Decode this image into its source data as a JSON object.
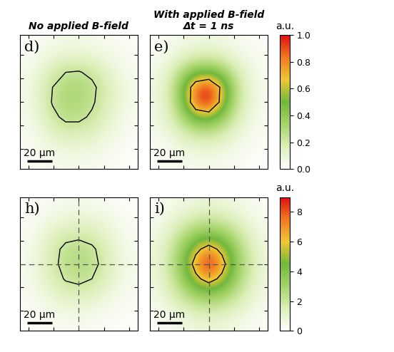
{
  "chart_data": [
    {
      "type": "heatmap",
      "title": "No applied B-field",
      "label": "d)",
      "xlim": [
        -47,
        47
      ],
      "ylim": [
        -57,
        57
      ],
      "xticks": [
        -40,
        -20,
        0,
        20,
        40
      ],
      "yticks": [
        -40,
        -20,
        0,
        20,
        40
      ],
      "tick_labels": false,
      "scale_bar": {
        "length": 20,
        "label": "20 µm"
      },
      "contour_level": 0.24,
      "color_range": [
        0,
        1
      ],
      "cells": [
        [
          0.02,
          0.03,
          0.05,
          0.06,
          0.06,
          0.05,
          0.04,
          0.03,
          0.02
        ],
        [
          0.03,
          0.06,
          0.1,
          0.13,
          0.13,
          0.11,
          0.08,
          0.05,
          0.03
        ],
        [
          0.05,
          0.1,
          0.18,
          0.24,
          0.25,
          0.21,
          0.14,
          0.08,
          0.04
        ],
        [
          0.06,
          0.13,
          0.24,
          0.3,
          0.31,
          0.27,
          0.18,
          0.1,
          0.05
        ],
        [
          0.06,
          0.13,
          0.25,
          0.31,
          0.3,
          0.26,
          0.17,
          0.1,
          0.05
        ],
        [
          0.05,
          0.11,
          0.21,
          0.27,
          0.27,
          0.22,
          0.15,
          0.08,
          0.04
        ],
        [
          0.04,
          0.08,
          0.14,
          0.18,
          0.18,
          0.15,
          0.1,
          0.06,
          0.03
        ],
        [
          0.03,
          0.05,
          0.08,
          0.1,
          0.1,
          0.09,
          0.06,
          0.04,
          0.02
        ],
        [
          0.02,
          0.03,
          0.04,
          0.05,
          0.05,
          0.04,
          0.03,
          0.02,
          0.01
        ]
      ]
    },
    {
      "type": "heatmap",
      "title": "With applied B-field\nΔt = 1 ns",
      "label": "e)",
      "xlim": [
        -47,
        47
      ],
      "ylim": [
        -57,
        57
      ],
      "xticks": [
        -40,
        -20,
        0,
        20,
        40
      ],
      "yticks": [
        -40,
        -20,
        0,
        20,
        40
      ],
      "tick_labels": false,
      "scale_bar": {
        "length": 20,
        "label": "20 µm"
      },
      "contour_level": 0.7,
      "color_range": [
        0,
        1
      ],
      "colorbar": {
        "label": "a.u.",
        "range": [
          0,
          1
        ],
        "ticks": [
          {
            "value": 0.0,
            "label": "0.0"
          },
          {
            "value": 0.2,
            "label": "0.2"
          },
          {
            "value": 0.4,
            "label": "0.4"
          },
          {
            "value": 0.6,
            "label": "0.6"
          },
          {
            "value": 0.8,
            "label": "0.8"
          },
          {
            "value": 1.0,
            "label": "1.0"
          }
        ]
      },
      "cells": [
        [
          0.02,
          0.04,
          0.06,
          0.08,
          0.08,
          0.07,
          0.05,
          0.03,
          0.02
        ],
        [
          0.04,
          0.08,
          0.14,
          0.18,
          0.19,
          0.16,
          0.1,
          0.06,
          0.03
        ],
        [
          0.06,
          0.14,
          0.3,
          0.45,
          0.48,
          0.38,
          0.2,
          0.1,
          0.04
        ],
        [
          0.08,
          0.18,
          0.45,
          0.85,
          0.95,
          0.65,
          0.28,
          0.12,
          0.05
        ],
        [
          0.08,
          0.18,
          0.44,
          0.88,
          1.0,
          0.62,
          0.27,
          0.12,
          0.05
        ],
        [
          0.07,
          0.15,
          0.32,
          0.52,
          0.55,
          0.4,
          0.2,
          0.1,
          0.04
        ],
        [
          0.05,
          0.1,
          0.18,
          0.25,
          0.26,
          0.2,
          0.12,
          0.06,
          0.03
        ],
        [
          0.03,
          0.05,
          0.09,
          0.11,
          0.12,
          0.1,
          0.06,
          0.04,
          0.02
        ],
        [
          0.02,
          0.03,
          0.04,
          0.05,
          0.05,
          0.04,
          0.03,
          0.02,
          0.01
        ]
      ]
    },
    {
      "type": "heatmap",
      "label": "h)",
      "xlim": [
        -47,
        47
      ],
      "ylim": [
        -57,
        57
      ],
      "xticks": [
        -40,
        -20,
        0,
        20,
        40
      ],
      "yticks": [
        -40,
        -20,
        0,
        20,
        40
      ],
      "tick_labels": false,
      "scale_bar": {
        "length": 20,
        "label": "20 µm"
      },
      "contour_level": 2.0,
      "crosshair": [
        0,
        0
      ],
      "color_range": [
        0,
        9
      ],
      "cells": [
        [
          0.1,
          0.2,
          0.3,
          0.4,
          0.4,
          0.4,
          0.3,
          0.2,
          0.1
        ],
        [
          0.2,
          0.4,
          0.7,
          0.9,
          1.0,
          0.9,
          0.7,
          0.4,
          0.2
        ],
        [
          0.3,
          0.7,
          1.2,
          1.6,
          1.7,
          1.5,
          1.1,
          0.6,
          0.3
        ],
        [
          0.4,
          0.9,
          1.6,
          2.3,
          2.5,
          2.2,
          1.5,
          0.8,
          0.4
        ],
        [
          0.4,
          1.0,
          1.7,
          2.4,
          2.6,
          2.4,
          1.6,
          0.9,
          0.4
        ],
        [
          0.4,
          0.9,
          1.5,
          2.1,
          2.3,
          2.0,
          1.4,
          0.8,
          0.4
        ],
        [
          0.3,
          0.6,
          1.0,
          1.4,
          1.5,
          1.3,
          0.9,
          0.5,
          0.3
        ],
        [
          0.2,
          0.4,
          0.6,
          0.8,
          0.8,
          0.7,
          0.5,
          0.3,
          0.2
        ],
        [
          0.1,
          0.2,
          0.3,
          0.3,
          0.4,
          0.3,
          0.2,
          0.2,
          0.1
        ]
      ]
    },
    {
      "type": "heatmap",
      "label": "i)",
      "xlim": [
        -47,
        47
      ],
      "ylim": [
        -57,
        57
      ],
      "xticks": [
        -40,
        -20,
        0,
        20,
        40
      ],
      "yticks": [
        -40,
        -20,
        0,
        20,
        40
      ],
      "tick_labels": false,
      "scale_bar": {
        "length": 20,
        "label": "20 µm"
      },
      "contour_level": 6.0,
      "crosshair": [
        0,
        0
      ],
      "color_range": [
        0,
        9
      ],
      "colorbar": {
        "label": "a.u.",
        "range": [
          0,
          9
        ],
        "ticks": [
          0,
          2,
          4,
          6,
          8
        ]
      },
      "cells": [
        [
          0.2,
          0.4,
          0.6,
          0.8,
          0.9,
          0.8,
          0.6,
          0.4,
          0.2
        ],
        [
          0.4,
          0.8,
          1.3,
          1.8,
          2.0,
          1.8,
          1.3,
          0.8,
          0.4
        ],
        [
          0.6,
          1.3,
          2.3,
          3.3,
          3.8,
          3.3,
          2.3,
          1.3,
          0.6
        ],
        [
          0.8,
          1.8,
          3.3,
          5.5,
          6.8,
          5.5,
          3.3,
          1.8,
          0.8
        ],
        [
          0.9,
          2.0,
          3.8,
          6.8,
          9.0,
          6.8,
          3.8,
          2.0,
          0.9
        ],
        [
          0.8,
          1.8,
          3.3,
          5.5,
          6.8,
          5.5,
          3.3,
          1.8,
          0.8
        ],
        [
          0.6,
          1.3,
          2.3,
          3.3,
          3.8,
          3.3,
          2.3,
          1.3,
          0.6
        ],
        [
          0.4,
          0.8,
          1.3,
          1.8,
          2.0,
          1.8,
          1.3,
          0.8,
          0.4
        ],
        [
          0.2,
          0.4,
          0.6,
          0.8,
          0.9,
          0.8,
          0.6,
          0.4,
          0.2
        ]
      ]
    }
  ]
}
